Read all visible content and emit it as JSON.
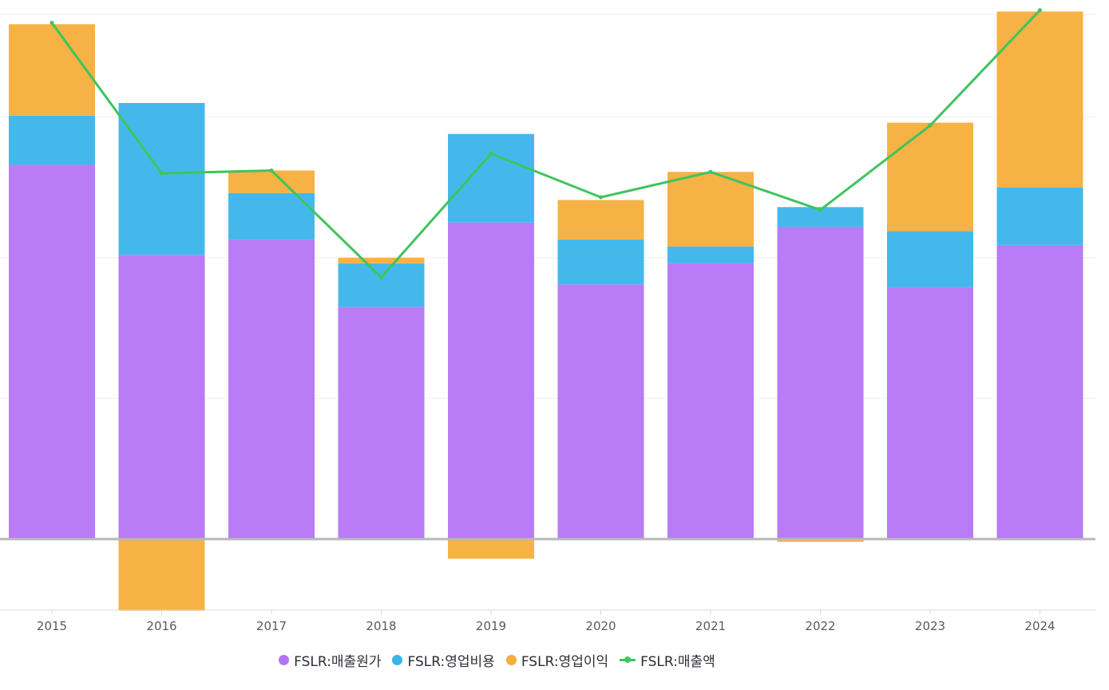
{
  "chart_data": {
    "type": "bar",
    "stacked": true,
    "categories": [
      "2015",
      "2016",
      "2017",
      "2018",
      "2019",
      "2020",
      "2021",
      "2022",
      "2023",
      "2024"
    ],
    "series": [
      {
        "name": "FSLR:매출원가",
        "kind": "bar",
        "color": "#b574f5",
        "values": [
          2660,
          2020,
          2130,
          1650,
          2250,
          1810,
          1960,
          2220,
          1790,
          2090
        ]
      },
      {
        "name": "FSLR:영업비용",
        "kind": "bar",
        "color": "#3bb4ea",
        "values": [
          350,
          1080,
          330,
          310,
          630,
          320,
          120,
          140,
          400,
          410
        ]
      },
      {
        "name": "FSLR:영업이익",
        "kind": "bar",
        "color": "#f5ae3a",
        "values": [
          650,
          -510,
          160,
          40,
          -140,
          280,
          530,
          -20,
          770,
          1250
        ]
      },
      {
        "name": "FSLR:매출액",
        "kind": "line",
        "color": "#3fc45e",
        "values": [
          3670,
          2600,
          2620,
          1860,
          2740,
          2430,
          2610,
          2340,
          2940,
          3760
        ]
      }
    ],
    "ylim": [
      -500,
      3730
    ],
    "grid": true,
    "legend": "bottom-center",
    "title": "",
    "xlabel": "",
    "ylabel": ""
  }
}
